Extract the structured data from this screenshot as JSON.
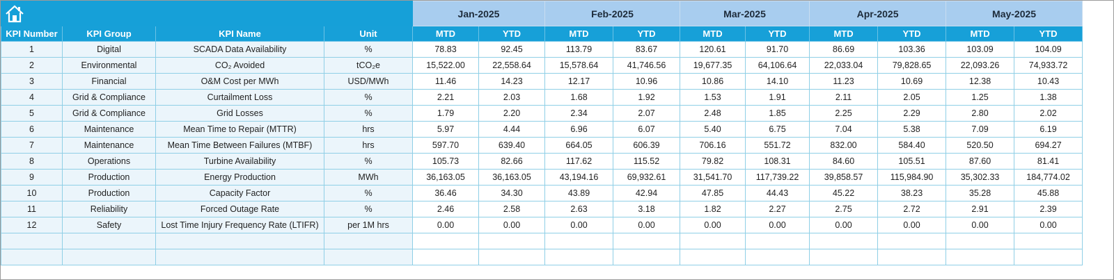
{
  "months": [
    "Jan-2025",
    "Feb-2025",
    "Mar-2025",
    "Apr-2025",
    "May-2025"
  ],
  "columns": [
    "KPI Number",
    "KPI Group",
    "KPI Name",
    "Unit",
    "MTD",
    "YTD",
    "MTD",
    "YTD",
    "MTD",
    "YTD",
    "MTD",
    "YTD",
    "MTD",
    "YTD"
  ],
  "rows": [
    [
      1,
      "Digital",
      "SCADA Data Availability",
      "%",
      "78.83",
      "92.45",
      "113.79",
      "83.67",
      "120.61",
      "91.70",
      "86.69",
      "103.36",
      "103.09",
      "104.09"
    ],
    [
      2,
      "Environmental",
      "CO₂ Avoided",
      "tCO₂e",
      "15,522.00",
      "22,558.64",
      "15,578.64",
      "41,746.56",
      "19,677.35",
      "64,106.64",
      "22,033.04",
      "79,828.65",
      "22,093.26",
      "74,933.72"
    ],
    [
      3,
      "Financial",
      "O&M Cost per MWh",
      "USD/MWh",
      "11.46",
      "14.23",
      "12.17",
      "10.96",
      "10.86",
      "14.10",
      "11.23",
      "10.69",
      "12.38",
      "10.43"
    ],
    [
      4,
      "Grid & Compliance",
      "Curtailment Loss",
      "%",
      "2.21",
      "2.03",
      "1.68",
      "1.92",
      "1.53",
      "1.91",
      "2.11",
      "2.05",
      "1.25",
      "1.38"
    ],
    [
      5,
      "Grid & Compliance",
      "Grid Losses",
      "%",
      "1.79",
      "2.20",
      "2.34",
      "2.07",
      "2.48",
      "1.85",
      "2.25",
      "2.29",
      "2.80",
      "2.02"
    ],
    [
      6,
      "Maintenance",
      "Mean Time to Repair (MTTR)",
      "hrs",
      "5.97",
      "4.44",
      "6.96",
      "6.07",
      "5.40",
      "6.75",
      "7.04",
      "5.38",
      "7.09",
      "6.19"
    ],
    [
      7,
      "Maintenance",
      "Mean Time Between Failures (MTBF)",
      "hrs",
      "597.70",
      "639.40",
      "664.05",
      "606.39",
      "706.16",
      "551.72",
      "832.00",
      "584.40",
      "520.50",
      "694.27"
    ],
    [
      8,
      "Operations",
      "Turbine Availability",
      "%",
      "105.73",
      "82.66",
      "117.62",
      "115.52",
      "79.82",
      "108.31",
      "84.60",
      "105.51",
      "87.60",
      "81.41"
    ],
    [
      9,
      "Production",
      "Energy Production",
      "MWh",
      "36,163.05",
      "36,163.05",
      "43,194.16",
      "69,932.61",
      "31,541.70",
      "117,739.22",
      "39,858.57",
      "115,984.90",
      "35,302.33",
      "184,774.02"
    ],
    [
      10,
      "Production",
      "Capacity Factor",
      "%",
      "36.46",
      "34.30",
      "43.89",
      "42.94",
      "47.85",
      "44.43",
      "45.22",
      "38.23",
      "35.28",
      "45.88"
    ],
    [
      11,
      "Reliability",
      "Forced Outage Rate",
      "%",
      "2.46",
      "2.58",
      "2.63",
      "3.18",
      "1.82",
      "2.27",
      "2.75",
      "2.72",
      "2.91",
      "2.39"
    ],
    [
      12,
      "Safety",
      "Lost Time Injury Frequency Rate (LTIFR)",
      "per 1M hrs",
      "0.00",
      "0.00",
      "0.00",
      "0.00",
      "0.00",
      "0.00",
      "0.00",
      "0.00",
      "0.00",
      "0.00"
    ]
  ]
}
